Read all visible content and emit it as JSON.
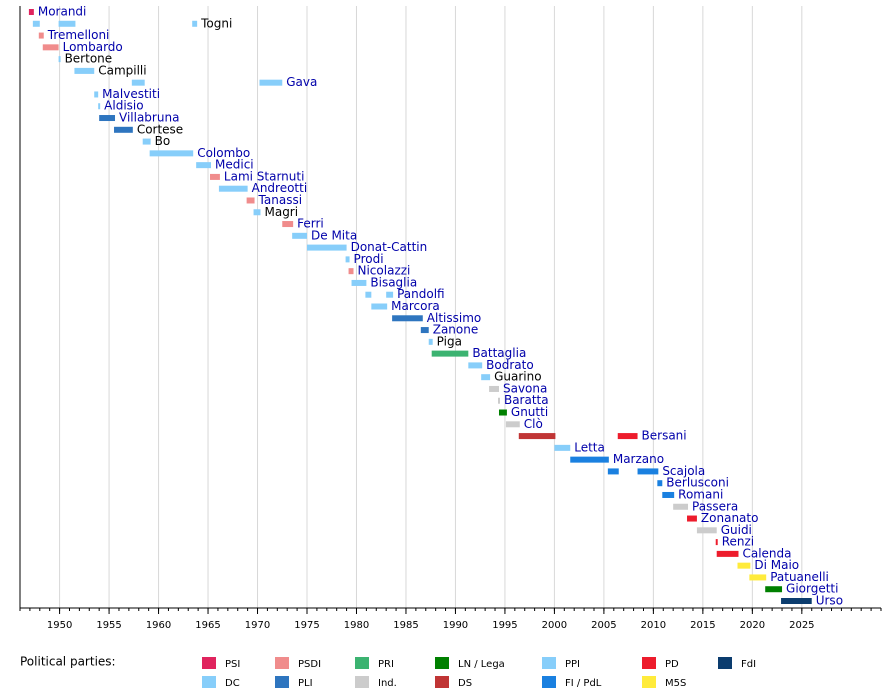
{
  "chart_data": {
    "type": "timeline",
    "xlim": [
      1946,
      2033
    ],
    "xticks": [
      1950,
      1955,
      1960,
      1965,
      1970,
      1975,
      1980,
      1985,
      1990,
      1995,
      2000,
      2005,
      2010,
      2015,
      2020,
      2025
    ],
    "grid": true,
    "minor_ticks": true,
    "rows": [
      {
        "name": "Morandi",
        "label_color": "#0000aa",
        "terms": [
          {
            "start": 1946.9,
            "end": 1947.4,
            "color": "#e0245e"
          }
        ]
      },
      {
        "name": "Togni",
        "label_color": "#000000",
        "terms": [
          {
            "start": 1947.3,
            "end": 1948.0,
            "color": "#87cefa"
          },
          {
            "start": 1949.9,
            "end": 1951.6,
            "color": "#87cefa"
          },
          {
            "start": 1963.4,
            "end": 1963.9,
            "color": "#87cefa"
          }
        ]
      },
      {
        "name": "Tremelloni",
        "label_color": "#0000aa",
        "terms": [
          {
            "start": 1947.9,
            "end": 1948.4,
            "color": "#f08c8c"
          }
        ]
      },
      {
        "name": "Lombardo",
        "label_color": "#0000aa",
        "terms": [
          {
            "start": 1948.3,
            "end": 1949.9,
            "color": "#f08c8c"
          }
        ]
      },
      {
        "name": "Bertone",
        "label_color": "#000000",
        "terms": [
          {
            "start": 1949.9,
            "end": 1950.1,
            "color": "#87cefa"
          }
        ]
      },
      {
        "name": "Campilli",
        "label_color": "#000000",
        "terms": [
          {
            "start": 1951.5,
            "end": 1953.5,
            "color": "#87cefa"
          }
        ]
      },
      {
        "name": "Gava",
        "label_color": "#0000aa",
        "terms": [
          {
            "start": 1957.3,
            "end": 1958.6,
            "color": "#87cefa"
          },
          {
            "start": 1970.2,
            "end": 1972.5,
            "color": "#87cefa"
          }
        ]
      },
      {
        "name": "Malvestiti",
        "label_color": "#0000aa",
        "terms": [
          {
            "start": 1953.5,
            "end": 1953.9,
            "color": "#87cefa"
          }
        ]
      },
      {
        "name": "Aldisio",
        "label_color": "#0000aa",
        "terms": [
          {
            "start": 1953.9,
            "end": 1954.1,
            "color": "#87cefa"
          }
        ]
      },
      {
        "name": "Villabruna",
        "label_color": "#0000aa",
        "terms": [
          {
            "start": 1954.0,
            "end": 1955.6,
            "color": "#2e75bf"
          }
        ]
      },
      {
        "name": "Cortese",
        "label_color": "#000000",
        "terms": [
          {
            "start": 1955.5,
            "end": 1957.4,
            "color": "#2e75bf"
          }
        ]
      },
      {
        "name": "Bo",
        "label_color": "#000000",
        "terms": [
          {
            "start": 1958.4,
            "end": 1959.2,
            "color": "#87cefa"
          }
        ]
      },
      {
        "name": "Colombo",
        "label_color": "#0000aa",
        "terms": [
          {
            "start": 1959.1,
            "end": 1963.5,
            "color": "#87cefa"
          }
        ]
      },
      {
        "name": "Medici",
        "label_color": "#0000aa",
        "terms": [
          {
            "start": 1963.8,
            "end": 1965.3,
            "color": "#87cefa"
          }
        ]
      },
      {
        "name": "Lami Starnuti",
        "label_color": "#0000aa",
        "terms": [
          {
            "start": 1965.2,
            "end": 1966.2,
            "color": "#f08c8c"
          }
        ]
      },
      {
        "name": "Andreotti",
        "label_color": "#0000aa",
        "terms": [
          {
            "start": 1966.1,
            "end": 1969.0,
            "color": "#87cefa"
          }
        ]
      },
      {
        "name": "Tanassi",
        "label_color": "#0000aa",
        "terms": [
          {
            "start": 1968.9,
            "end": 1969.7,
            "color": "#f08c8c"
          }
        ]
      },
      {
        "name": "Magri",
        "label_color": "#000000",
        "terms": [
          {
            "start": 1969.6,
            "end": 1970.3,
            "color": "#87cefa"
          }
        ]
      },
      {
        "name": "Ferri",
        "label_color": "#0000aa",
        "terms": [
          {
            "start": 1972.5,
            "end": 1973.6,
            "color": "#f08c8c"
          }
        ]
      },
      {
        "name": "De Mita",
        "label_color": "#0000aa",
        "terms": [
          {
            "start": 1973.5,
            "end": 1975.0,
            "color": "#87cefa"
          }
        ]
      },
      {
        "name": "Donat-Cattin",
        "label_color": "#0000aa",
        "terms": [
          {
            "start": 1975.0,
            "end": 1979.0,
            "color": "#87cefa"
          }
        ]
      },
      {
        "name": "Prodi",
        "label_color": "#0000aa",
        "terms": [
          {
            "start": 1978.9,
            "end": 1979.3,
            "color": "#87cefa"
          }
        ]
      },
      {
        "name": "Nicolazzi",
        "label_color": "#0000aa",
        "terms": [
          {
            "start": 1979.2,
            "end": 1979.7,
            "color": "#f08c8c"
          }
        ]
      },
      {
        "name": "Bisaglia",
        "label_color": "#0000aa",
        "terms": [
          {
            "start": 1979.5,
            "end": 1981.0,
            "color": "#87cefa"
          }
        ]
      },
      {
        "name": "Pandolfi",
        "label_color": "#0000aa",
        "terms": [
          {
            "start": 1980.9,
            "end": 1981.5,
            "color": "#87cefa"
          },
          {
            "start": 1983.0,
            "end": 1983.7,
            "color": "#87cefa"
          }
        ]
      },
      {
        "name": "Marcora",
        "label_color": "#0000aa",
        "terms": [
          {
            "start": 1981.5,
            "end": 1983.1,
            "color": "#87cefa"
          }
        ]
      },
      {
        "name": "Altissimo",
        "label_color": "#0000aa",
        "terms": [
          {
            "start": 1983.6,
            "end": 1986.7,
            "color": "#2e75bf"
          }
        ]
      },
      {
        "name": "Zanone",
        "label_color": "#0000aa",
        "terms": [
          {
            "start": 1986.5,
            "end": 1987.3,
            "color": "#2e75bf"
          }
        ]
      },
      {
        "name": "Piga",
        "label_color": "#000000",
        "terms": [
          {
            "start": 1987.3,
            "end": 1987.7,
            "color": "#87cefa"
          }
        ]
      },
      {
        "name": "Battaglia",
        "label_color": "#0000aa",
        "terms": [
          {
            "start": 1987.6,
            "end": 1991.3,
            "color": "#3cb371"
          }
        ]
      },
      {
        "name": "Bodrato",
        "label_color": "#0000aa",
        "terms": [
          {
            "start": 1991.3,
            "end": 1992.7,
            "color": "#87cefa"
          }
        ]
      },
      {
        "name": "Guarino",
        "label_color": "#000000",
        "terms": [
          {
            "start": 1992.6,
            "end": 1993.5,
            "color": "#87cefa"
          }
        ]
      },
      {
        "name": "Savona",
        "label_color": "#0000aa",
        "terms": [
          {
            "start": 1993.4,
            "end": 1994.4,
            "color": "#cccccc"
          }
        ]
      },
      {
        "name": "Baratta",
        "label_color": "#0000aa",
        "terms": [
          {
            "start": 1994.3,
            "end": 1994.5,
            "color": "#cccccc"
          }
        ]
      },
      {
        "name": "Gnutti",
        "label_color": "#0000aa",
        "terms": [
          {
            "start": 1994.4,
            "end": 1995.2,
            "color": "#008000"
          }
        ]
      },
      {
        "name": "Clò",
        "label_color": "#0000aa",
        "terms": [
          {
            "start": 1995.1,
            "end": 1996.5,
            "color": "#cccccc"
          }
        ]
      },
      {
        "name": "Bersani",
        "label_color": "#0000aa",
        "terms": [
          {
            "start": 1996.4,
            "end": 2000.1,
            "color": "#c03535"
          },
          {
            "start": 2006.4,
            "end": 2008.4,
            "color": "#ed1c2c"
          }
        ]
      },
      {
        "name": "Letta",
        "label_color": "#0000aa",
        "terms": [
          {
            "start": 2000.0,
            "end": 2001.6,
            "color": "#87cefa"
          }
        ]
      },
      {
        "name": "Marzano",
        "label_color": "#0000aa",
        "terms": [
          {
            "start": 2001.6,
            "end": 2005.5,
            "color": "#1a80e0"
          }
        ]
      },
      {
        "name": "Scajola",
        "label_color": "#0000aa",
        "terms": [
          {
            "start": 2005.4,
            "end": 2006.5,
            "color": "#1a80e0"
          },
          {
            "start": 2008.4,
            "end": 2010.5,
            "color": "#1a80e0"
          }
        ]
      },
      {
        "name": "Berlusconi",
        "label_color": "#0000aa",
        "terms": [
          {
            "start": 2010.4,
            "end": 2010.9,
            "color": "#1a80e0"
          }
        ]
      },
      {
        "name": "Romani",
        "label_color": "#0000aa",
        "terms": [
          {
            "start": 2010.9,
            "end": 2012.1,
            "color": "#1a80e0"
          }
        ]
      },
      {
        "name": "Passera",
        "label_color": "#0000aa",
        "terms": [
          {
            "start": 2012.0,
            "end": 2013.5,
            "color": "#cccccc"
          }
        ]
      },
      {
        "name": "Zonanato",
        "label_color": "#0000aa",
        "terms": [
          {
            "start": 2013.4,
            "end": 2014.4,
            "color": "#ed1c2c"
          }
        ]
      },
      {
        "name": "Guidi",
        "label_color": "#0000aa",
        "terms": [
          {
            "start": 2014.4,
            "end": 2016.4,
            "color": "#cccccc"
          }
        ]
      },
      {
        "name": "Renzi",
        "label_color": "#0000aa",
        "terms": [
          {
            "start": 2016.3,
            "end": 2016.5,
            "color": "#ed1c2c"
          }
        ]
      },
      {
        "name": "Calenda",
        "label_color": "#0000aa",
        "terms": [
          {
            "start": 2016.4,
            "end": 2018.6,
            "color": "#ed1c2c"
          }
        ]
      },
      {
        "name": "Di Maio",
        "label_color": "#0000aa",
        "terms": [
          {
            "start": 2018.5,
            "end": 2019.8,
            "color": "#ffeb3b"
          }
        ]
      },
      {
        "name": "Patuanelli",
        "label_color": "#0000aa",
        "terms": [
          {
            "start": 2019.7,
            "end": 2021.4,
            "color": "#ffeb3b"
          }
        ]
      },
      {
        "name": "Giorgetti",
        "label_color": "#0000aa",
        "terms": [
          {
            "start": 2021.3,
            "end": 2023.0,
            "color": "#008000"
          }
        ]
      },
      {
        "name": "Urso",
        "label_color": "#0000aa",
        "terms": [
          {
            "start": 2022.9,
            "end": 2026.0,
            "color": "#0b3c6e"
          }
        ]
      }
    ],
    "legend": {
      "title": "Political parties:",
      "items": [
        {
          "name": "PSI",
          "color": "#e0245e"
        },
        {
          "name": "DC",
          "color": "#87cefa"
        },
        {
          "name": "PSDI",
          "color": "#f08c8c"
        },
        {
          "name": "PLI",
          "color": "#2e75bf"
        },
        {
          "name": "PRI",
          "color": "#3cb371"
        },
        {
          "name": "Ind.",
          "color": "#cccccc"
        },
        {
          "name": "LN / Lega",
          "color": "#008000"
        },
        {
          "name": "DS",
          "color": "#c03535"
        },
        {
          "name": "PPI",
          "color": "#87cefa"
        },
        {
          "name": "FI / PdL",
          "color": "#1a80e0"
        },
        {
          "name": "PD",
          "color": "#ed1c2c"
        },
        {
          "name": "M5S",
          "color": "#ffeb3b"
        },
        {
          "name": "FdI",
          "color": "#0b3c6e"
        }
      ]
    }
  }
}
